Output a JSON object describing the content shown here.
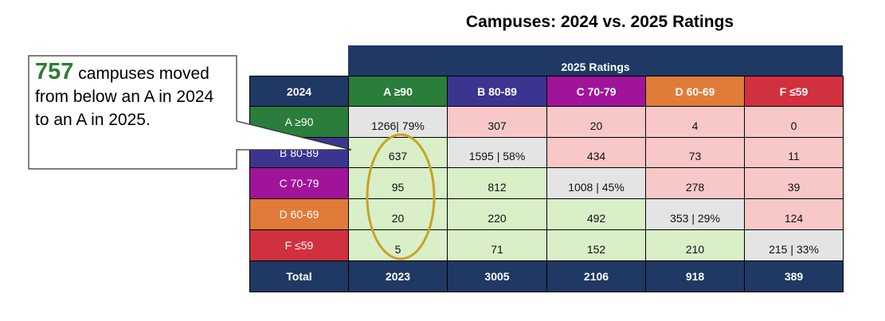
{
  "title": "Campuses: 2024 vs. 2025 Ratings",
  "callout": {
    "number": "757",
    "text": "campuses moved from below an A in 2024 to an A in 2025."
  },
  "table": {
    "band": "2025 Ratings",
    "corner": "2024",
    "columns": [
      "A ≥90",
      "B 80-89",
      "C 70-79",
      "D 60-69",
      "F ≤59"
    ],
    "rows": [
      {
        "label": "A ≥90",
        "cells": [
          "1266| 79%",
          307,
          20,
          4,
          0
        ]
      },
      {
        "label": "B 80-89",
        "cells": [
          637,
          "1595 | 58%",
          434,
          73,
          11
        ]
      },
      {
        "label": "C 70-79",
        "cells": [
          95,
          812,
          "1008 | 45%",
          278,
          39
        ]
      },
      {
        "label": "D 60-69",
        "cells": [
          20,
          220,
          492,
          "353 | 29%",
          124
        ]
      },
      {
        "label": "F ≤59",
        "cells": [
          5,
          71,
          152,
          210,
          "215 | 33%"
        ]
      }
    ],
    "total": {
      "label": "Total",
      "cells": [
        2023,
        3005,
        2106,
        918,
        389
      ]
    }
  }
}
